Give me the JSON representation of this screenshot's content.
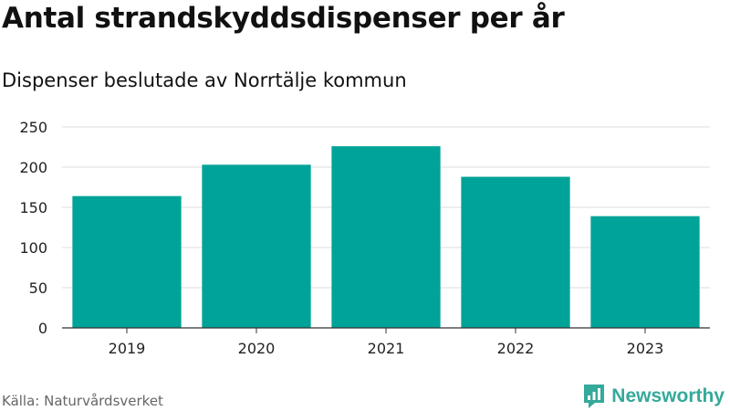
{
  "header": {
    "title": "Antal strandskyddsdispenser per år",
    "subtitle": "Dispenser beslutade av Norrtälje kommun"
  },
  "footer": {
    "source": "Källa: Naturvårdsverket",
    "brand_name": "Newsworthy",
    "brand_icon": "newsworthy-logo-icon",
    "brand_color": "#35a99a"
  },
  "chart_data": {
    "type": "bar",
    "categories": [
      "2019",
      "2020",
      "2021",
      "2022",
      "2023"
    ],
    "values": [
      164,
      203,
      226,
      188,
      139
    ],
    "ylim": [
      0,
      250
    ],
    "yticks": [
      0,
      50,
      100,
      150,
      200,
      250
    ],
    "grid": true,
    "bar_color": "#00a398",
    "gridline_color": "#dddddd",
    "axis_color": "#333333"
  }
}
